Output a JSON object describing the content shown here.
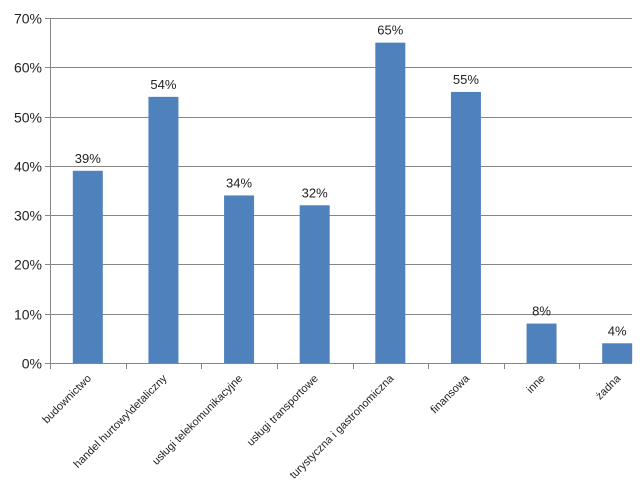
{
  "chart_data": {
    "type": "bar",
    "title": "",
    "xlabel": "",
    "ylabel": "",
    "categories": [
      "budownictwo",
      "handel hurtowy\\detaliczny",
      "usługi telekomunikacyjne",
      "usługi transportowe",
      "turystyczna i gastronomiczna",
      "finansowa",
      "inne",
      "żadna"
    ],
    "values": [
      39,
      54,
      34,
      32,
      65,
      55,
      8,
      4
    ],
    "data_labels": [
      "39%",
      "54%",
      "34%",
      "32%",
      "65%",
      "55%",
      "8%",
      "4%"
    ],
    "ylim": [
      0,
      70
    ],
    "yticks": [
      0,
      10,
      20,
      30,
      40,
      50,
      60,
      70
    ],
    "ytick_labels": [
      "0%",
      "10%",
      "20%",
      "30%",
      "40%",
      "50%",
      "60%",
      "70%"
    ],
    "grid": true,
    "legend": "none",
    "bar_color": "#4f81bd"
  }
}
